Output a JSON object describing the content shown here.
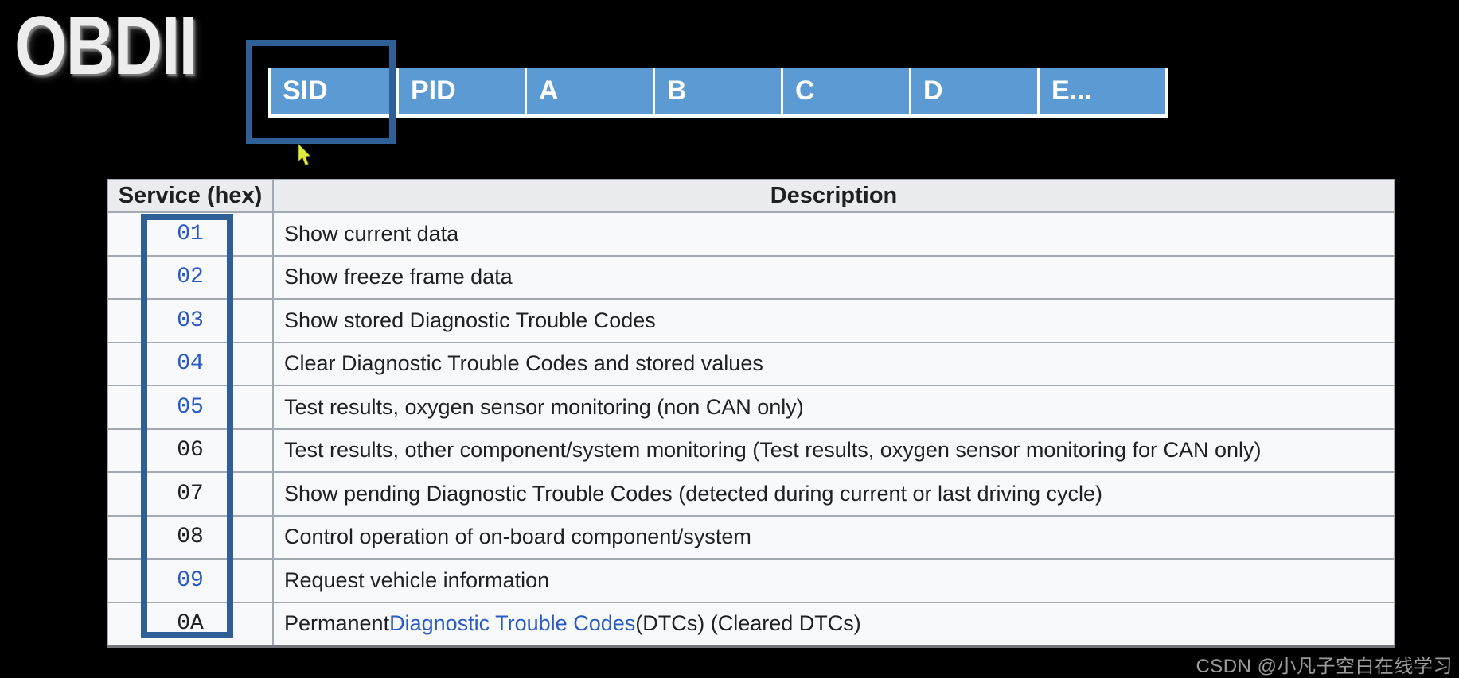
{
  "title": "OBDII",
  "packet_header": {
    "highlighted_cell": "SID",
    "cells": [
      {
        "label": "SID",
        "highlighted": true
      },
      {
        "label": "PID",
        "highlighted": false
      },
      {
        "label": "A",
        "highlighted": false
      },
      {
        "label": "B",
        "highlighted": false
      },
      {
        "label": "C",
        "highlighted": false
      },
      {
        "label": "D",
        "highlighted": false
      },
      {
        "label": "E...",
        "highlighted": false
      }
    ]
  },
  "services_table": {
    "columns": [
      "Service (hex)",
      "Description"
    ],
    "rows": [
      {
        "code": "01",
        "code_link": true,
        "description": [
          {
            "text": "Show current data",
            "link": false
          }
        ]
      },
      {
        "code": "02",
        "code_link": true,
        "description": [
          {
            "text": "Show freeze frame data",
            "link": false
          }
        ]
      },
      {
        "code": "03",
        "code_link": true,
        "description": [
          {
            "text": "Show stored Diagnostic Trouble Codes",
            "link": false
          }
        ]
      },
      {
        "code": "04",
        "code_link": true,
        "description": [
          {
            "text": "Clear Diagnostic Trouble Codes and stored values",
            "link": false
          }
        ]
      },
      {
        "code": "05",
        "code_link": true,
        "description": [
          {
            "text": "Test results, oxygen sensor monitoring (non CAN only)",
            "link": false
          }
        ]
      },
      {
        "code": "06",
        "code_link": false,
        "description": [
          {
            "text": "Test results, other component/system monitoring (Test results, oxygen sensor monitoring for CAN only)",
            "link": false
          }
        ]
      },
      {
        "code": "07",
        "code_link": false,
        "description": [
          {
            "text": "Show pending Diagnostic Trouble Codes (detected during current or last driving cycle)",
            "link": false
          }
        ]
      },
      {
        "code": "08",
        "code_link": false,
        "description": [
          {
            "text": "Control operation of on-board component/system",
            "link": false
          }
        ]
      },
      {
        "code": "09",
        "code_link": true,
        "description": [
          {
            "text": "Request vehicle information",
            "link": false
          }
        ]
      },
      {
        "code": "0A",
        "code_link": false,
        "description": [
          {
            "text": "Permanent ",
            "link": false
          },
          {
            "text": "Diagnostic Trouble Codes",
            "link": true
          },
          {
            "text": " (DTCs) (Cleared DTCs)",
            "link": false
          }
        ]
      }
    ]
  },
  "cursor": {
    "shape": "arrow-pointer",
    "color": "#dfe93e"
  },
  "watermark": "CSDN @小凡子空白在线学习",
  "colors": {
    "background": "#000000",
    "cell_blue": "#5b9ad2",
    "highlight_border": "#2e5f96",
    "link_blue": "#2a5bc4",
    "table_header_bg": "#eaecf0",
    "row_bg": "#f8f9fa",
    "row_border": "#a2a9b1",
    "text_dark": "#1d2124",
    "watermark_gray": "#9b9b9b"
  }
}
